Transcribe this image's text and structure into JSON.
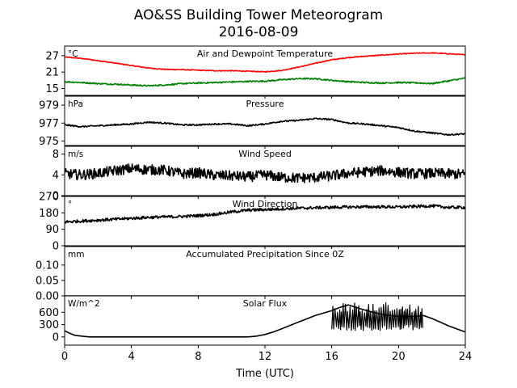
{
  "figure": {
    "title_line1": "AO&SS Building Tower Meteorogram",
    "title_line2": "2016-08-09",
    "xlabel": "Time (UTC)"
  },
  "chart_data": [
    {
      "type": "line",
      "title": "Air and Dewpoint Temperature",
      "unit": "°C",
      "ylim": [
        12.5,
        30.5
      ],
      "yticks": [
        15,
        21,
        27
      ],
      "xlim": [
        0,
        24
      ],
      "xticks": [
        0,
        4,
        8,
        12,
        16,
        20,
        24
      ],
      "series": [
        {
          "color": "#ff0000",
          "x": [
            0,
            1,
            2,
            3,
            4,
            5,
            6,
            7,
            8,
            9,
            10,
            11,
            12,
            13,
            14,
            15,
            16,
            17,
            18,
            19,
            20,
            21,
            22,
            23,
            24
          ],
          "y": [
            26.5,
            26.0,
            25.2,
            24.3,
            23.4,
            22.5,
            22.0,
            21.9,
            21.7,
            21.5,
            21.5,
            21.3,
            21.1,
            21.6,
            22.8,
            24.2,
            25.5,
            26.3,
            26.8,
            27.2,
            27.6,
            27.9,
            28.0,
            27.7,
            27.3
          ],
          "noise": 0.15
        },
        {
          "color": "#008000",
          "x": [
            0,
            1,
            2,
            3,
            4,
            5,
            6,
            7,
            8,
            9,
            10,
            11,
            12,
            13,
            14,
            15,
            16,
            17,
            18,
            19,
            20,
            21,
            22,
            23,
            24
          ],
          "y": [
            17.5,
            17.2,
            16.8,
            16.6,
            16.3,
            16.0,
            16.3,
            16.8,
            17.0,
            17.2,
            17.4,
            17.6,
            17.7,
            18.2,
            18.6,
            18.6,
            18.0,
            17.5,
            17.2,
            17.0,
            17.2,
            17.1,
            16.8,
            17.8,
            18.8
          ],
          "noise": 0.25
        }
      ]
    },
    {
      "type": "line",
      "title": "Pressure",
      "unit": "hPa",
      "ylim": [
        974.5,
        980.0
      ],
      "yticks": [
        975,
        977,
        979
      ],
      "xlim": [
        0,
        24
      ],
      "series": [
        {
          "color": "#000000",
          "x": [
            0,
            1,
            2,
            3,
            4,
            5,
            6,
            7,
            8,
            9,
            10,
            11,
            12,
            13,
            14,
            15,
            16,
            17,
            18,
            19,
            20,
            21,
            22,
            23,
            24
          ],
          "y": [
            976.8,
            976.6,
            976.7,
            976.8,
            976.9,
            977.1,
            977.0,
            976.8,
            976.8,
            976.9,
            976.9,
            976.7,
            976.9,
            977.2,
            977.3,
            977.5,
            977.4,
            977.0,
            976.9,
            976.7,
            976.5,
            976.1,
            975.9,
            975.7,
            975.8
          ],
          "noise": 0.08
        }
      ]
    },
    {
      "type": "line",
      "title": "Wind Speed",
      "unit": "m/s",
      "ylim": [
        0,
        9.5
      ],
      "yticks": [
        0,
        4,
        8
      ],
      "xlim": [
        0,
        24
      ],
      "series": [
        {
          "color": "#000000",
          "x": [
            0,
            1,
            2,
            3,
            4,
            5,
            6,
            7,
            8,
            9,
            10,
            11,
            12,
            13,
            14,
            15,
            16,
            17,
            18,
            19,
            20,
            21,
            22,
            23,
            24
          ],
          "y": [
            4.2,
            4.0,
            4.3,
            4.8,
            5.2,
            5.0,
            4.9,
            4.2,
            4.4,
            3.9,
            3.8,
            3.6,
            4.0,
            3.5,
            3.4,
            3.5,
            3.8,
            4.3,
            4.6,
            4.8,
            4.5,
            4.2,
            4.3,
            4.2,
            4.1
          ],
          "noise": 1.0
        }
      ]
    },
    {
      "type": "line",
      "title": "Wind Direction",
      "unit": "°",
      "ylim": [
        0,
        270
      ],
      "yticks": [
        0,
        90,
        180,
        270
      ],
      "xlim": [
        0,
        24
      ],
      "series": [
        {
          "color": "#000000",
          "x": [
            0,
            1,
            2,
            3,
            4,
            5,
            6,
            7,
            8,
            9,
            10,
            11,
            12,
            13,
            14,
            15,
            16,
            17,
            18,
            19,
            20,
            21,
            22,
            23,
            24
          ],
          "y": [
            130,
            135,
            140,
            145,
            150,
            155,
            158,
            160,
            165,
            172,
            185,
            195,
            198,
            202,
            205,
            208,
            210,
            212,
            213,
            213,
            212,
            215,
            218,
            210,
            210
          ],
          "noise": 8
        }
      ]
    },
    {
      "type": "line",
      "title": "Accumulated Precipitation Since 0Z",
      "unit": "mm",
      "ylim": [
        0,
        0.16
      ],
      "yticks": [
        0.0,
        0.05,
        0.1
      ],
      "ytick_labels": [
        "0.00",
        "0.05",
        "0.10"
      ],
      "xlim": [
        0,
        24
      ],
      "series": [
        {
          "color": "#000000",
          "x": [
            0,
            24
          ],
          "y": [
            0,
            0
          ],
          "noise": 0
        }
      ]
    },
    {
      "type": "line",
      "title": "Solar Flux",
      "unit": "W/m^2",
      "ylim": [
        -200,
        1000
      ],
      "yticks": [
        0,
        300,
        600
      ],
      "xlim": [
        0,
        24
      ],
      "series": [
        {
          "color": "#000000",
          "x": [
            0,
            0.3,
            0.6,
            1,
            1.5,
            2,
            4,
            6,
            8,
            10,
            11,
            11.5,
            12,
            12.5,
            13,
            13.5,
            14,
            14.5,
            15,
            15.5,
            16,
            16.5,
            17,
            18,
            19,
            20,
            21,
            21.5,
            22,
            22.5,
            23,
            24
          ],
          "y": [
            150,
            90,
            40,
            20,
            0,
            0,
            0,
            0,
            0,
            0,
            0,
            20,
            60,
            120,
            200,
            280,
            360,
            440,
            520,
            580,
            640,
            720,
            780,
            650,
            550,
            500,
            500,
            520,
            450,
            360,
            270,
            120
          ],
          "noise": 0
        },
        {
          "color": "#000000",
          "cloudy": true,
          "x_from": 16.0,
          "x_to": 21.5,
          "y_low": 150,
          "y_high": 840
        }
      ]
    }
  ]
}
